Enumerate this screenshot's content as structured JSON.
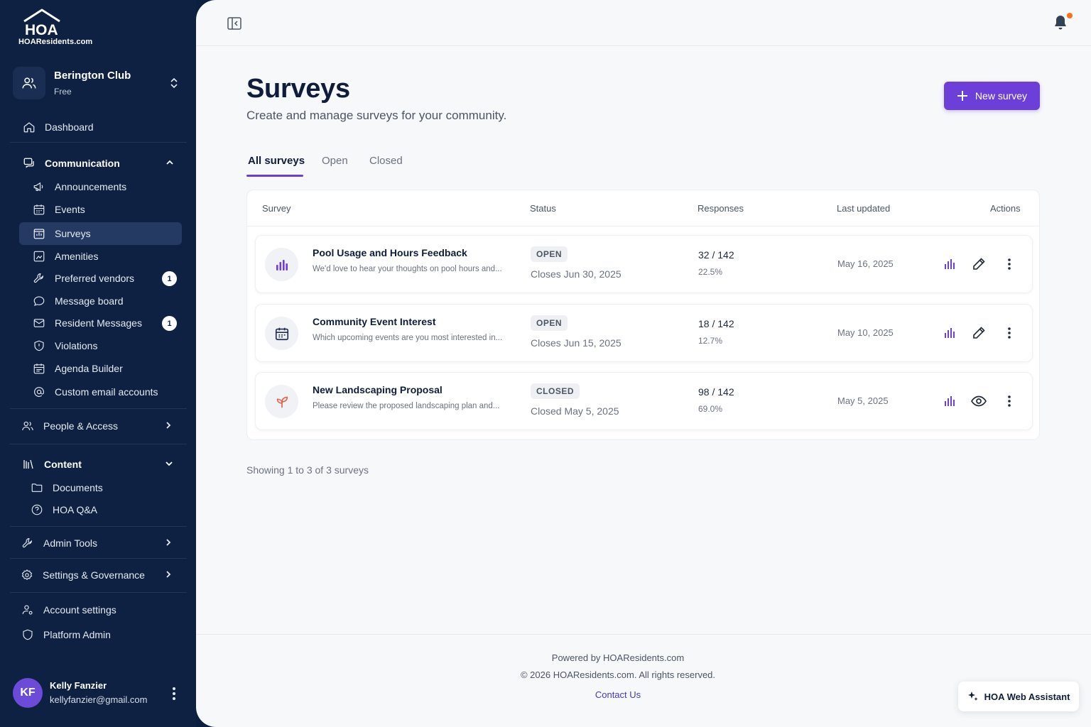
{
  "brand": {
    "logo_text": "HOAResidents.com",
    "accent": "#6d3fd9",
    "sidebar_bg": "#0e2142"
  },
  "org": {
    "name": "Berington Club",
    "plan": "Free"
  },
  "sidebar": {
    "dashboard": "Dashboard",
    "communication": {
      "label": "Communication",
      "items": [
        {
          "label": "Announcements",
          "icon": "megaphone-icon"
        },
        {
          "label": "Events",
          "icon": "calendar-icon"
        },
        {
          "label": "Surveys",
          "icon": "survey-icon",
          "active": true
        },
        {
          "label": "Amenities",
          "icon": "amenities-icon"
        },
        {
          "label": "Preferred vendors",
          "icon": "wrench-icon",
          "badge": "1"
        },
        {
          "label": "Message board",
          "icon": "chat-bubble-icon"
        },
        {
          "label": "Resident Messages",
          "icon": "envelope-icon",
          "badge": "1"
        },
        {
          "label": "Violations",
          "icon": "shield-alert-icon"
        },
        {
          "label": "Agenda Builder",
          "icon": "calendar-list-icon"
        },
        {
          "label": "Custom email accounts",
          "icon": "at-icon"
        }
      ]
    },
    "people_access": "People & Access",
    "content": {
      "label": "Content",
      "items": [
        {
          "label": "Documents",
          "icon": "folder-icon"
        },
        {
          "label": "HOA Q&A",
          "icon": "question-icon"
        }
      ]
    },
    "admin_tools": "Admin Tools",
    "settings_governance": "Settings & Governance",
    "account_settings": "Account settings",
    "platform_admin": "Platform Admin"
  },
  "user": {
    "initials": "KF",
    "name": "Kelly Fanzier",
    "email": "kellyfanzier@gmail.com"
  },
  "page": {
    "title": "Surveys",
    "subtitle": "Create and manage surveys for your community.",
    "new_button": "New survey"
  },
  "tabs": [
    "All surveys",
    "Open",
    "Closed"
  ],
  "table": {
    "headers": {
      "survey": "Survey",
      "status": "Status",
      "responses": "Responses",
      "updated": "Last updated",
      "actions": "Actions"
    },
    "rows": [
      {
        "title": "Pool Usage and Hours Feedback",
        "desc": "We'd love to hear your thoughts on pool hours and...",
        "status": "OPEN",
        "status_date": "Closes Jun 30, 2025",
        "responses": "32 / 142",
        "pct": "22.5%",
        "updated": "May 16, 2025",
        "icon": "bar-chart-icon"
      },
      {
        "title": "Community Event Interest",
        "desc": "Which upcoming events are you most interested in...",
        "status": "OPEN",
        "status_date": "Closes Jun 15, 2025",
        "responses": "18 / 142",
        "pct": "12.7%",
        "updated": "May 10, 2025",
        "icon": "calendar-icon"
      },
      {
        "title": "New Landscaping Proposal",
        "desc": "Please review the proposed landscaping plan and...",
        "status": "CLOSED",
        "status_date": "Closed May 5, 2025",
        "responses": "98 / 142",
        "pct": "69.0%",
        "updated": "May 5, 2025",
        "icon": "sprout-icon"
      }
    ]
  },
  "showing": "Showing 1 to 3 of 3 surveys",
  "footer": {
    "powered": "Powered by HOAResidents.com",
    "copyright": "© 2026 HOAResidents.com. All rights reserved.",
    "contact": "Contact Us"
  },
  "assistant": "HOA Web Assistant"
}
